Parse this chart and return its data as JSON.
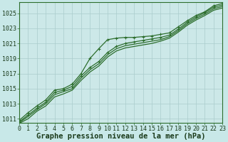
{
  "title": "Graphe pression niveau de la mer (hPa)",
  "background_color": "#c8e8e8",
  "plot_bg_color": "#cce8e8",
  "grid_color": "#aacccc",
  "line_color": "#2d6e2d",
  "x_ticks": [
    0,
    1,
    2,
    3,
    4,
    5,
    6,
    7,
    8,
    9,
    10,
    11,
    12,
    13,
    14,
    15,
    16,
    17,
    18,
    19,
    20,
    21,
    22,
    23
  ],
  "xlim": [
    0,
    23
  ],
  "ylim": [
    1010.5,
    1026.5
  ],
  "yticks": [
    1011,
    1013,
    1015,
    1017,
    1019,
    1021,
    1023,
    1025
  ],
  "series": [
    [
      1010.8,
      1011.8,
      1012.7,
      1013.5,
      1014.8,
      1015.0,
      1015.6,
      1017.0,
      1019.0,
      1020.3,
      1021.5,
      1021.7,
      1021.8,
      1021.8,
      1021.9,
      1022.0,
      1022.2,
      1022.4,
      1023.2,
      1024.0,
      1024.7,
      1025.2,
      1026.0,
      1026.3
    ],
    [
      1010.6,
      1011.5,
      1012.4,
      1013.2,
      1014.5,
      1014.8,
      1015.3,
      1016.7,
      1017.8,
      1018.6,
      1019.8,
      1020.6,
      1021.0,
      1021.2,
      1021.4,
      1021.6,
      1021.8,
      1022.1,
      1022.9,
      1023.8,
      1024.5,
      1025.1,
      1025.8,
      1026.1
    ],
    [
      1010.5,
      1011.3,
      1012.2,
      1013.0,
      1014.2,
      1014.6,
      1015.0,
      1016.4,
      1017.5,
      1018.3,
      1019.5,
      1020.3,
      1020.7,
      1020.9,
      1021.1,
      1021.3,
      1021.5,
      1021.9,
      1022.7,
      1023.6,
      1024.3,
      1024.9,
      1025.6,
      1025.9
    ],
    [
      1010.4,
      1011.0,
      1012.0,
      1012.7,
      1013.9,
      1014.3,
      1014.8,
      1016.1,
      1017.2,
      1018.0,
      1019.2,
      1020.0,
      1020.4,
      1020.6,
      1020.8,
      1021.0,
      1021.3,
      1021.7,
      1022.5,
      1023.4,
      1024.1,
      1024.7,
      1025.4,
      1025.7
    ]
  ],
  "marker_series": [
    0,
    1
  ],
  "marker_style": "+",
  "marker_size": 3.5,
  "title_fontsize": 7.5,
  "tick_fontsize": 6,
  "title_font": "monospace"
}
